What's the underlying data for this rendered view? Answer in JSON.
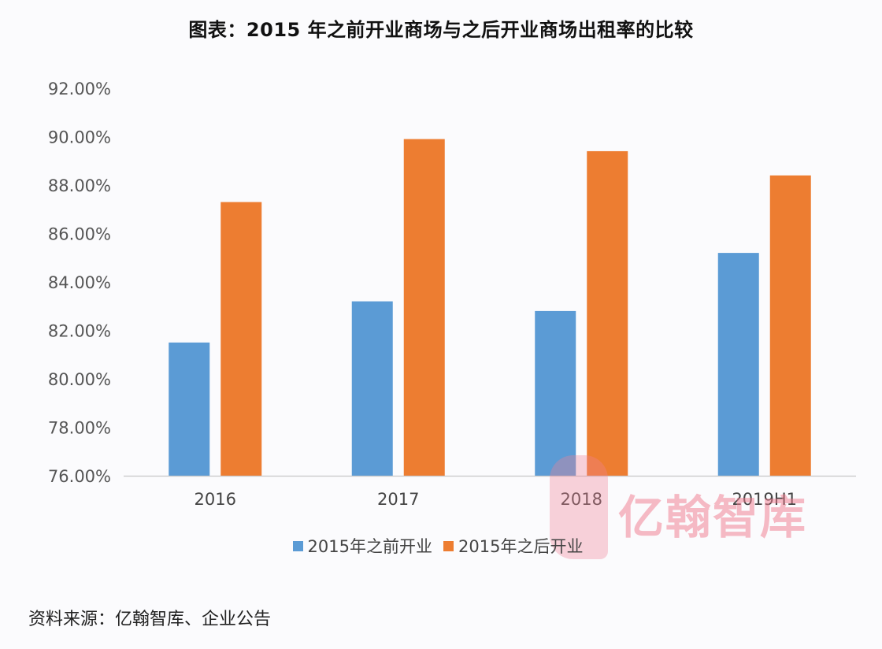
{
  "title": "图表：2015 年之前开业商场与之后开业商场出租率的比较",
  "source": "资料来源：亿翰智库、企业公告",
  "watermark": "亿翰智库",
  "colors": {
    "series_before": "#5b9bd5",
    "series_after": "#ed7d31",
    "axis": "#c8c8c8"
  },
  "legend": [
    {
      "label": "2015年之前开业",
      "color": "#5b9bd5"
    },
    {
      "label": "2015年之后开业",
      "color": "#ed7d31"
    }
  ],
  "chart_data": {
    "type": "bar",
    "title": "图表：2015 年之前开业商场与之后开业商场出租率的比较",
    "xlabel": "",
    "ylabel": "",
    "categories": [
      "2016",
      "2017",
      "2018",
      "2019H1"
    ],
    "series": [
      {
        "name": "2015年之前开业",
        "color": "#5b9bd5",
        "values": [
          81.5,
          83.2,
          82.8,
          85.2
        ]
      },
      {
        "name": "2015年之后开业",
        "color": "#ed7d31",
        "values": [
          87.3,
          89.9,
          89.4,
          88.4
        ]
      }
    ],
    "ylim": [
      76,
      92
    ],
    "yticks": [
      "92.00%",
      "90.00%",
      "88.00%",
      "86.00%",
      "84.00%",
      "82.00%",
      "80.00%",
      "78.00%",
      "76.00%"
    ],
    "ytick_values": [
      92,
      90,
      88,
      86,
      84,
      82,
      80,
      78,
      76
    ],
    "grid": false,
    "legend_position": "bottom",
    "unit": "%"
  }
}
